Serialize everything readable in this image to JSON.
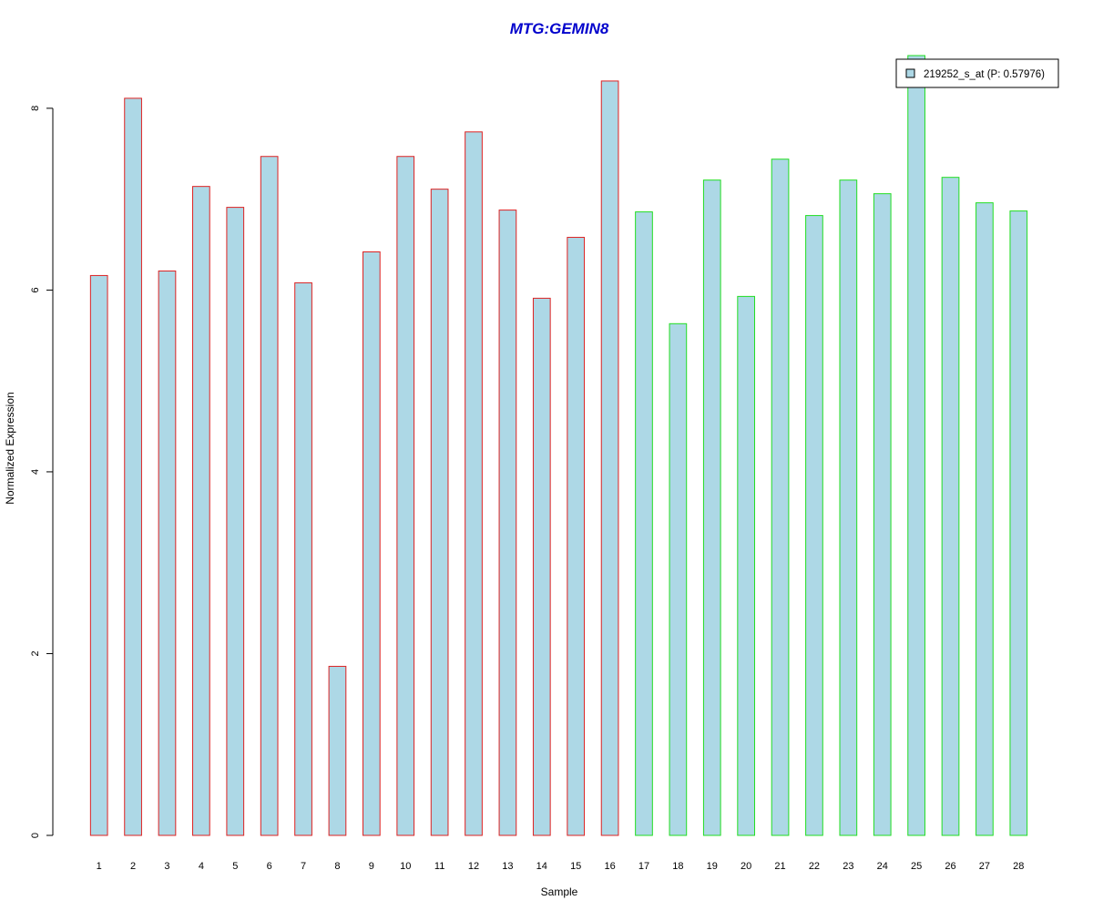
{
  "chart_data": {
    "type": "bar",
    "title": "MTG:GEMIN8",
    "xlabel": "Sample",
    "ylabel": "Normalized Expression",
    "ylim": [
      0,
      8.6
    ],
    "yticks": [
      0,
      2,
      4,
      6,
      8
    ],
    "categories": [
      "1",
      "2",
      "3",
      "4",
      "5",
      "6",
      "7",
      "8",
      "9",
      "10",
      "11",
      "12",
      "13",
      "14",
      "15",
      "16",
      "17",
      "18",
      "19",
      "20",
      "21",
      "22",
      "23",
      "24",
      "25",
      "26",
      "27",
      "28"
    ],
    "series": [
      {
        "name": "219252_s_at (P: 0.57976)",
        "values": [
          6.16,
          8.11,
          6.21,
          7.14,
          6.91,
          7.47,
          6.08,
          1.86,
          6.42,
          7.47,
          7.11,
          7.74,
          6.88,
          5.91,
          6.58,
          8.3,
          6.86,
          5.63,
          7.21,
          5.93,
          7.44,
          6.82,
          7.21,
          7.06,
          8.58,
          7.24,
          6.96,
          6.87
        ]
      }
    ],
    "groups": [
      {
        "from": 1,
        "to": 16,
        "border_color": "#dd2222"
      },
      {
        "from": 17,
        "to": 28,
        "border_color": "#22dd22"
      }
    ],
    "bar_fill": "#add8e6",
    "title_color": "#0000cc",
    "legend": {
      "label": "219252_s_at (P: 0.57976)",
      "position": "top-right"
    },
    "grid": false
  }
}
